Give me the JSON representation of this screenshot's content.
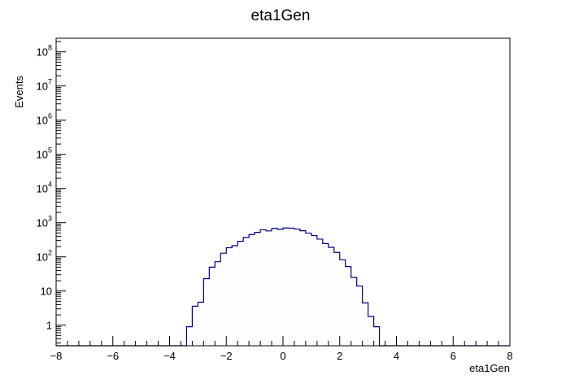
{
  "chart_data": {
    "type": "histogram",
    "title": "eta1Gen",
    "xlabel": "eta1Gen",
    "ylabel": "Events",
    "xlim": [
      -8,
      8
    ],
    "ylim": [
      0.25,
      250000000
    ],
    "y_scale": "log",
    "grid": false,
    "legend": "none",
    "x_ticks": [
      {
        "value": -8,
        "label": "−8"
      },
      {
        "value": -6,
        "label": "−6"
      },
      {
        "value": -4,
        "label": "−4"
      },
      {
        "value": -2,
        "label": "−2"
      },
      {
        "value": 0,
        "label": "0"
      },
      {
        "value": 2,
        "label": "2"
      },
      {
        "value": 4,
        "label": "4"
      },
      {
        "value": 6,
        "label": "6"
      },
      {
        "value": 8,
        "label": "8"
      }
    ],
    "y_ticks": [
      {
        "value": 1,
        "base": "1",
        "exp": ""
      },
      {
        "value": 10,
        "base": "10",
        "exp": ""
      },
      {
        "value": 100,
        "base": "10",
        "exp": "2"
      },
      {
        "value": 1000,
        "base": "10",
        "exp": "3"
      },
      {
        "value": 10000,
        "base": "10",
        "exp": "4"
      },
      {
        "value": 100000,
        "base": "10",
        "exp": "5"
      },
      {
        "value": 1000000,
        "base": "10",
        "exp": "6"
      },
      {
        "value": 10000000,
        "base": "10",
        "exp": "7"
      },
      {
        "value": 100000000,
        "base": "10",
        "exp": "8"
      }
    ],
    "series": [
      {
        "line_color": "#000080",
        "fill_color": "#fdfdfd",
        "bin_width": 0.2,
        "bins": [
          {
            "x_low": -3.4,
            "value": 0.9
          },
          {
            "x_low": -3.2,
            "value": 3.6
          },
          {
            "x_low": -3.0,
            "value": 4.7
          },
          {
            "x_low": -2.8,
            "value": 23
          },
          {
            "x_low": -2.6,
            "value": 50
          },
          {
            "x_low": -2.4,
            "value": 72
          },
          {
            "x_low": -2.2,
            "value": 128
          },
          {
            "x_low": -2.0,
            "value": 185
          },
          {
            "x_low": -1.8,
            "value": 212
          },
          {
            "x_low": -1.6,
            "value": 285
          },
          {
            "x_low": -1.4,
            "value": 370
          },
          {
            "x_low": -1.2,
            "value": 450
          },
          {
            "x_low": -1.0,
            "value": 520
          },
          {
            "x_low": -0.8,
            "value": 620
          },
          {
            "x_low": -0.6,
            "value": 575
          },
          {
            "x_low": -0.4,
            "value": 680
          },
          {
            "x_low": -0.2,
            "value": 640
          },
          {
            "x_low": 0.0,
            "value": 700
          },
          {
            "x_low": 0.2,
            "value": 690
          },
          {
            "x_low": 0.4,
            "value": 650
          },
          {
            "x_low": 0.6,
            "value": 580
          },
          {
            "x_low": 0.8,
            "value": 495
          },
          {
            "x_low": 1.0,
            "value": 420
          },
          {
            "x_low": 1.2,
            "value": 330
          },
          {
            "x_low": 1.4,
            "value": 245
          },
          {
            "x_low": 1.6,
            "value": 190
          },
          {
            "x_low": 1.8,
            "value": 135
          },
          {
            "x_low": 2.0,
            "value": 82
          },
          {
            "x_low": 2.2,
            "value": 52
          },
          {
            "x_low": 2.4,
            "value": 25
          },
          {
            "x_low": 2.6,
            "value": 14
          },
          {
            "x_low": 2.8,
            "value": 4.5
          },
          {
            "x_low": 3.0,
            "value": 1.8
          },
          {
            "x_low": 3.2,
            "value": 0.9
          }
        ]
      }
    ]
  }
}
